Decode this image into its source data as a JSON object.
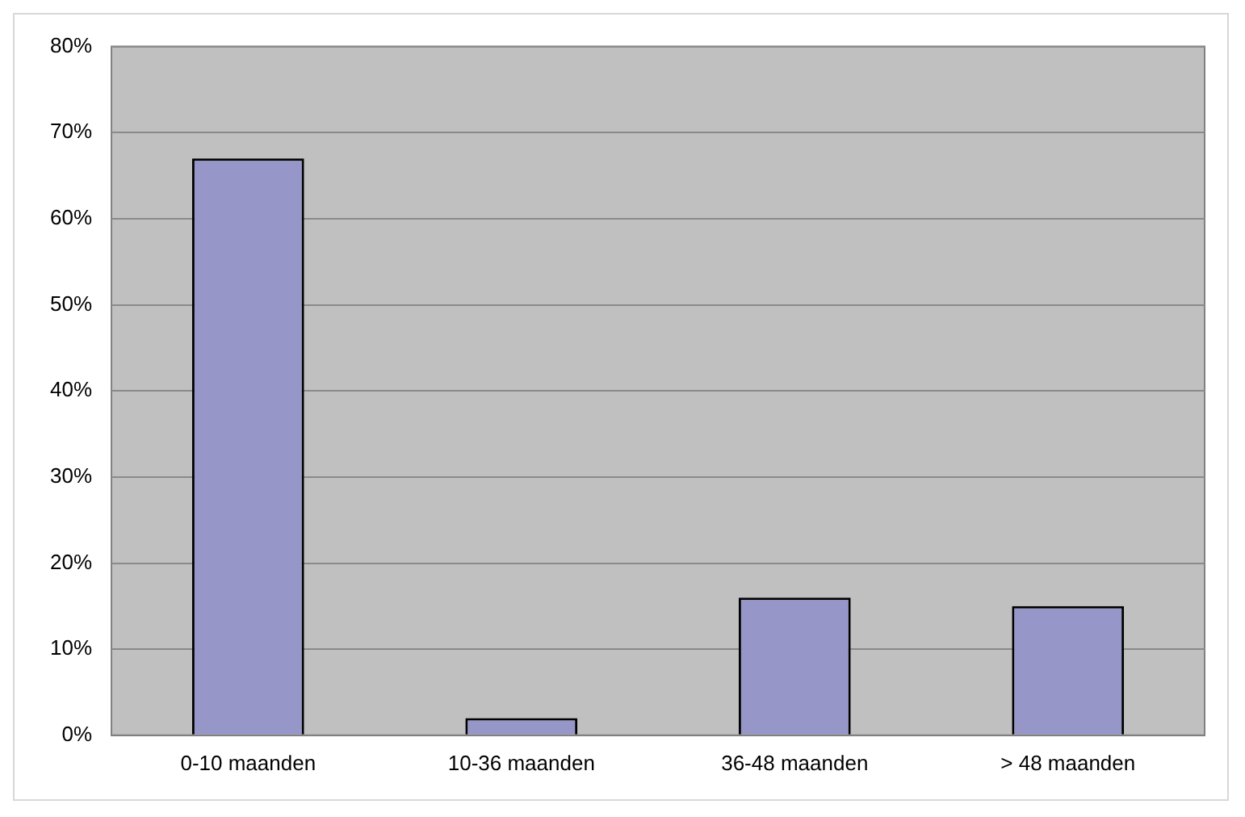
{
  "chart_data": {
    "type": "bar",
    "categories": [
      "0-10 maanden",
      "10-36 maanden",
      "36-48 maanden",
      "> 48 maanden"
    ],
    "values": [
      67,
      2,
      16,
      15
    ],
    "color": "#9696c8",
    "ylim": [
      0,
      80
    ],
    "yticks": [
      {
        "value": 0,
        "label": "0%"
      },
      {
        "value": 10,
        "label": "10%"
      },
      {
        "value": 20,
        "label": "20%"
      },
      {
        "value": 30,
        "label": "30%"
      },
      {
        "value": 40,
        "label": "40%"
      },
      {
        "value": 50,
        "label": "50%"
      },
      {
        "value": 60,
        "label": "60%"
      },
      {
        "value": 70,
        "label": "70%"
      },
      {
        "value": 80,
        "label": "80%"
      }
    ],
    "grid": "y"
  }
}
